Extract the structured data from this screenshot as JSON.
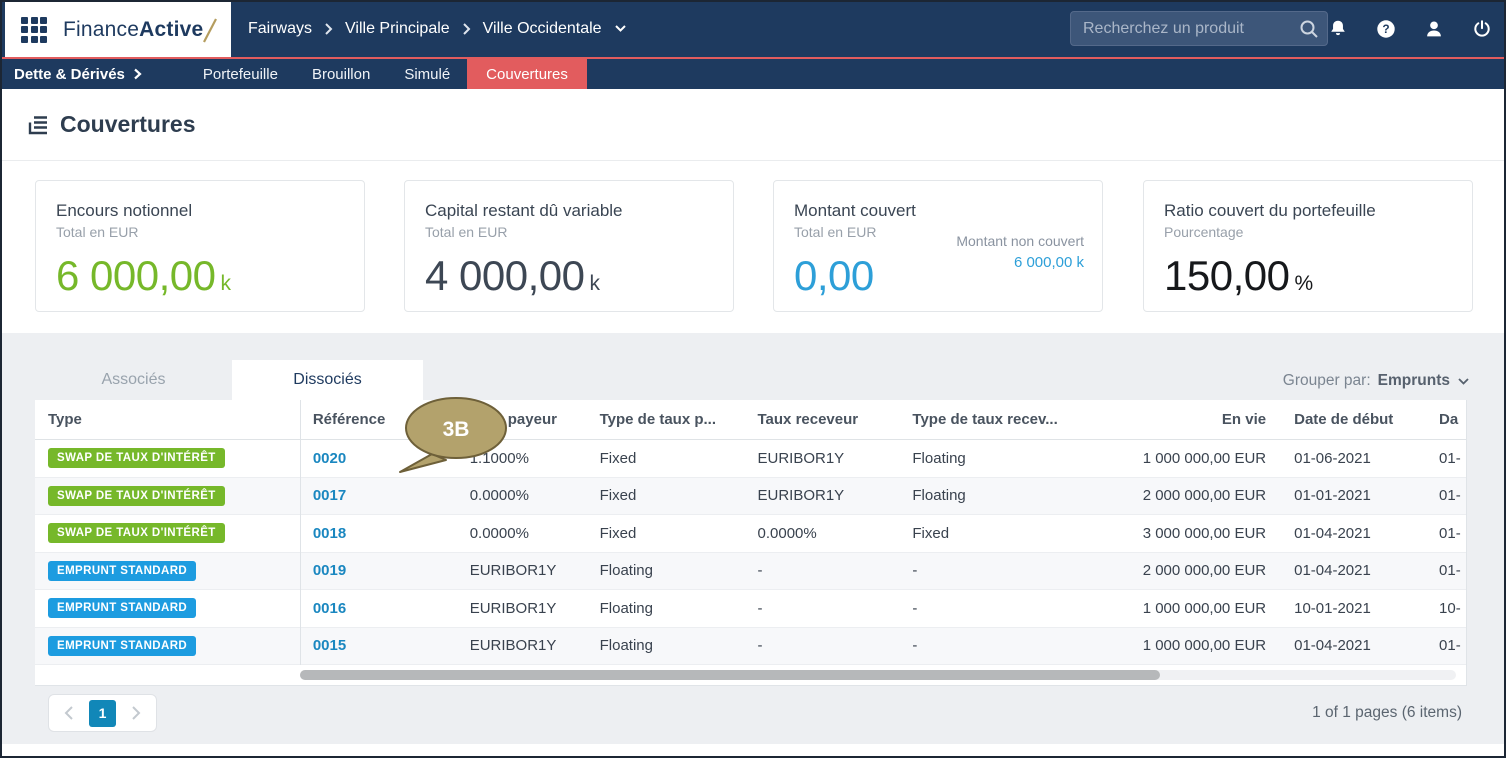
{
  "topbar": {
    "logo": {
      "text_regular": "Finance",
      "text_bold": "Active"
    },
    "breadcrumb": {
      "items": [
        "Fairways",
        "Ville Principale",
        "Ville Occidentale"
      ]
    },
    "search": {
      "placeholder": "Recherchez un produit"
    },
    "icons": [
      "bell",
      "help",
      "user",
      "power"
    ]
  },
  "navbar": {
    "section_label": "Dette & Dérivés",
    "items": [
      {
        "label": "Portefeuille",
        "active": false
      },
      {
        "label": "Brouillon",
        "active": false
      },
      {
        "label": "Simulé",
        "active": false
      },
      {
        "label": "Couvertures",
        "active": true
      }
    ],
    "active_color": "#e25c5e"
  },
  "page": {
    "title": "Couvertures"
  },
  "kpi_cards": [
    {
      "title": "Encours notionnel",
      "subtitle": "Total en EUR",
      "value": "6 000,00",
      "unit": "k",
      "value_color": "#76b82a"
    },
    {
      "title": "Capital restant dû variable",
      "subtitle": "Total en EUR",
      "value": "4 000,00",
      "unit": "k",
      "value_color": "#3d4754"
    },
    {
      "title": "Montant couvert",
      "subtitle": "Total en EUR",
      "value": "0,00",
      "unit": "",
      "value_color": "#2d9fd8",
      "secondary": {
        "label": "Montant non couvert",
        "value": "6 000,00 k"
      }
    },
    {
      "title": "Ratio couvert du portefeuille",
      "subtitle": "Pourcentage",
      "value": "150,00",
      "unit": "%",
      "value_color": "#16181b"
    }
  ],
  "tabs": [
    {
      "label": "Associés",
      "active": false
    },
    {
      "label": "Dissociés",
      "active": true
    }
  ],
  "group_by": {
    "label": "Grouper par:",
    "value": "Emprunts"
  },
  "callout": {
    "text": "3B",
    "fill": "#b3a26c",
    "stroke": "#6e6039"
  },
  "table": {
    "columns": [
      {
        "label": "Type"
      },
      {
        "label": "Référence"
      },
      {
        "label": "Taux payeur"
      },
      {
        "label": "Type de taux p..."
      },
      {
        "label": "Taux receveur"
      },
      {
        "label": "Type de taux recev..."
      },
      {
        "label": "En vie"
      },
      {
        "label": "Date de début"
      },
      {
        "label": "Da"
      }
    ],
    "badge_colors": {
      "swap": "#76b82a",
      "emprunt": "#1d9ce0"
    },
    "rows": [
      {
        "type_label": "SWAP DE TAUX D'INTÉRÊT",
        "type_kind": "swap",
        "reference": "0020",
        "taux_payeur": "1.1000%",
        "type_taux_payeur": "Fixed",
        "taux_receveur": "EURIBOR1Y",
        "type_taux_receveur": "Floating",
        "en_vie": "1 000 000,00 EUR",
        "date_debut": "01-06-2021",
        "date_fin": "01-"
      },
      {
        "type_label": "SWAP DE TAUX D'INTÉRÊT",
        "type_kind": "swap",
        "reference": "0017",
        "taux_payeur": "0.0000%",
        "type_taux_payeur": "Fixed",
        "taux_receveur": "EURIBOR1Y",
        "type_taux_receveur": "Floating",
        "en_vie": "2 000 000,00 EUR",
        "date_debut": "01-01-2021",
        "date_fin": "01-"
      },
      {
        "type_label": "SWAP DE TAUX D'INTÉRÊT",
        "type_kind": "swap",
        "reference": "0018",
        "taux_payeur": "0.0000%",
        "type_taux_payeur": "Fixed",
        "taux_receveur": "0.0000%",
        "type_taux_receveur": "Fixed",
        "en_vie": "3 000 000,00 EUR",
        "date_debut": "01-04-2021",
        "date_fin": "01-"
      },
      {
        "type_label": "EMPRUNT STANDARD",
        "type_kind": "emprunt",
        "reference": "0019",
        "taux_payeur": "EURIBOR1Y",
        "type_taux_payeur": "Floating",
        "taux_receveur": "-",
        "type_taux_receveur": "-",
        "en_vie": "2 000 000,00 EUR",
        "date_debut": "01-04-2021",
        "date_fin": "01-"
      },
      {
        "type_label": "EMPRUNT STANDARD",
        "type_kind": "emprunt",
        "reference": "0016",
        "taux_payeur": "EURIBOR1Y",
        "type_taux_payeur": "Floating",
        "taux_receveur": "-",
        "type_taux_receveur": "-",
        "en_vie": "1 000 000,00 EUR",
        "date_debut": "10-01-2021",
        "date_fin": "10-"
      },
      {
        "type_label": "EMPRUNT STANDARD",
        "type_kind": "emprunt",
        "reference": "0015",
        "taux_payeur": "EURIBOR1Y",
        "type_taux_payeur": "Floating",
        "taux_receveur": "-",
        "type_taux_receveur": "-",
        "en_vie": "1 000 000,00 EUR",
        "date_debut": "01-04-2021",
        "date_fin": "01-"
      }
    ]
  },
  "pagination": {
    "current_page": "1",
    "summary": "1 of 1 pages (6 items)"
  }
}
